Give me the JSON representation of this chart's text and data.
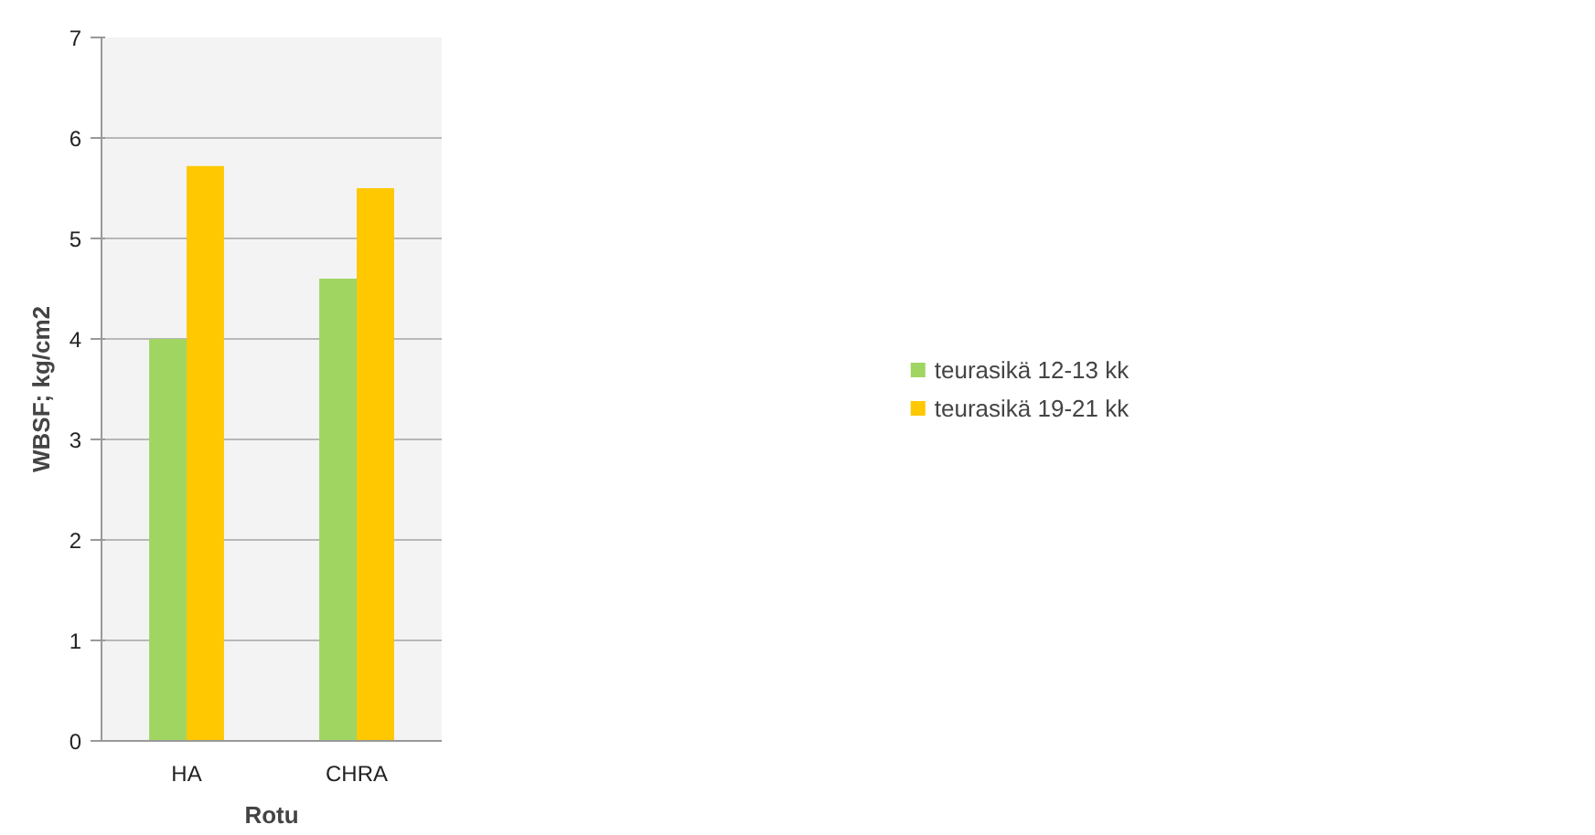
{
  "chart_data": {
    "type": "bar",
    "xlabel": "Rotu",
    "ylabel": "WBSF; kg/cm2",
    "categories": [
      "HA",
      "CHRA"
    ],
    "series": [
      {
        "name": "teurasikä 12-13 kk",
        "color": "#a0d562",
        "values": [
          4.0,
          4.6
        ]
      },
      {
        "name": "teurasikä 19-21 kk",
        "color": "#ffc800",
        "values": [
          5.72,
          5.5
        ]
      }
    ],
    "ylim": [
      0,
      7
    ],
    "yticks": [
      0,
      1,
      2,
      3,
      4,
      5,
      6,
      7
    ],
    "grid": "y",
    "legend": "right"
  }
}
